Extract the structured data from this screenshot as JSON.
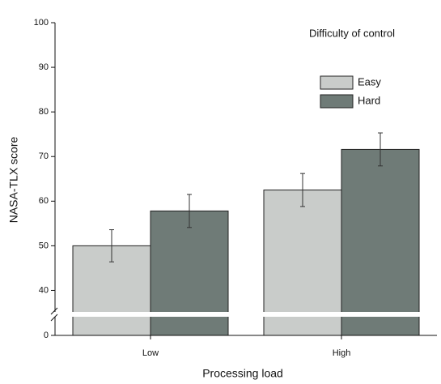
{
  "chart_data": {
    "type": "bar",
    "x_label": "Processing load",
    "y_label": "NASA-TLX score",
    "legend_title": "Difficulty of control",
    "legend": "top-right",
    "categories": [
      "Low",
      "High"
    ],
    "series": [
      {
        "name": "Easy",
        "color": "#c9ccca",
        "values": [
          50,
          62.5
        ],
        "errors": [
          3.6,
          3.7
        ]
      },
      {
        "name": "Hard",
        "color": "#6f7b77",
        "values": [
          57.8,
          71.6
        ],
        "errors": [
          3.7,
          3.7
        ]
      }
    ],
    "ylim": [
      0,
      100
    ],
    "yticks": [
      0,
      40,
      50,
      60,
      70,
      80,
      90,
      100
    ],
    "axis_break": [
      0,
      35
    ]
  }
}
